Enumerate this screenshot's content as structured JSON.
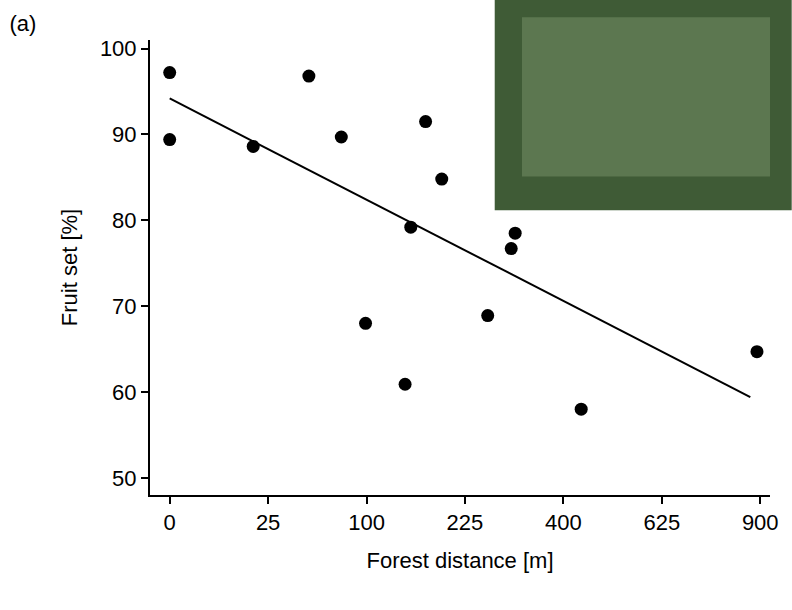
{
  "chart_data": {
    "type": "scatter",
    "title": "(a)",
    "x_label": "Forest distance [m]",
    "y_label": "Fruit set [%]",
    "xlim": [
      -1,
      930
    ],
    "xticks": [
      0,
      25,
      100,
      225,
      400,
      625,
      900
    ],
    "ylim": [
      48,
      101
    ],
    "yticks": [
      50,
      60,
      70,
      80,
      90,
      100
    ],
    "grid": false,
    "series": [
      {
        "type": "scatter",
        "marker": "circle",
        "color": "#000000",
        "x": [
          0,
          0,
          18,
          50,
          76,
          99,
          143,
          150,
          169,
          191,
          261,
          301,
          308,
          437,
          890
        ],
        "values": [
          97.2,
          89.4,
          88.6,
          96.8,
          89.7,
          68.0,
          60.9,
          79.2,
          91.5,
          84.8,
          68.9,
          76.7,
          78.5,
          58.0,
          64.7
        ]
      },
      {
        "type": "line",
        "line_style": "solid",
        "color": "#000000",
        "x": [
          0,
          870
        ],
        "values": [
          94.2,
          59.4
        ]
      }
    ]
  }
}
